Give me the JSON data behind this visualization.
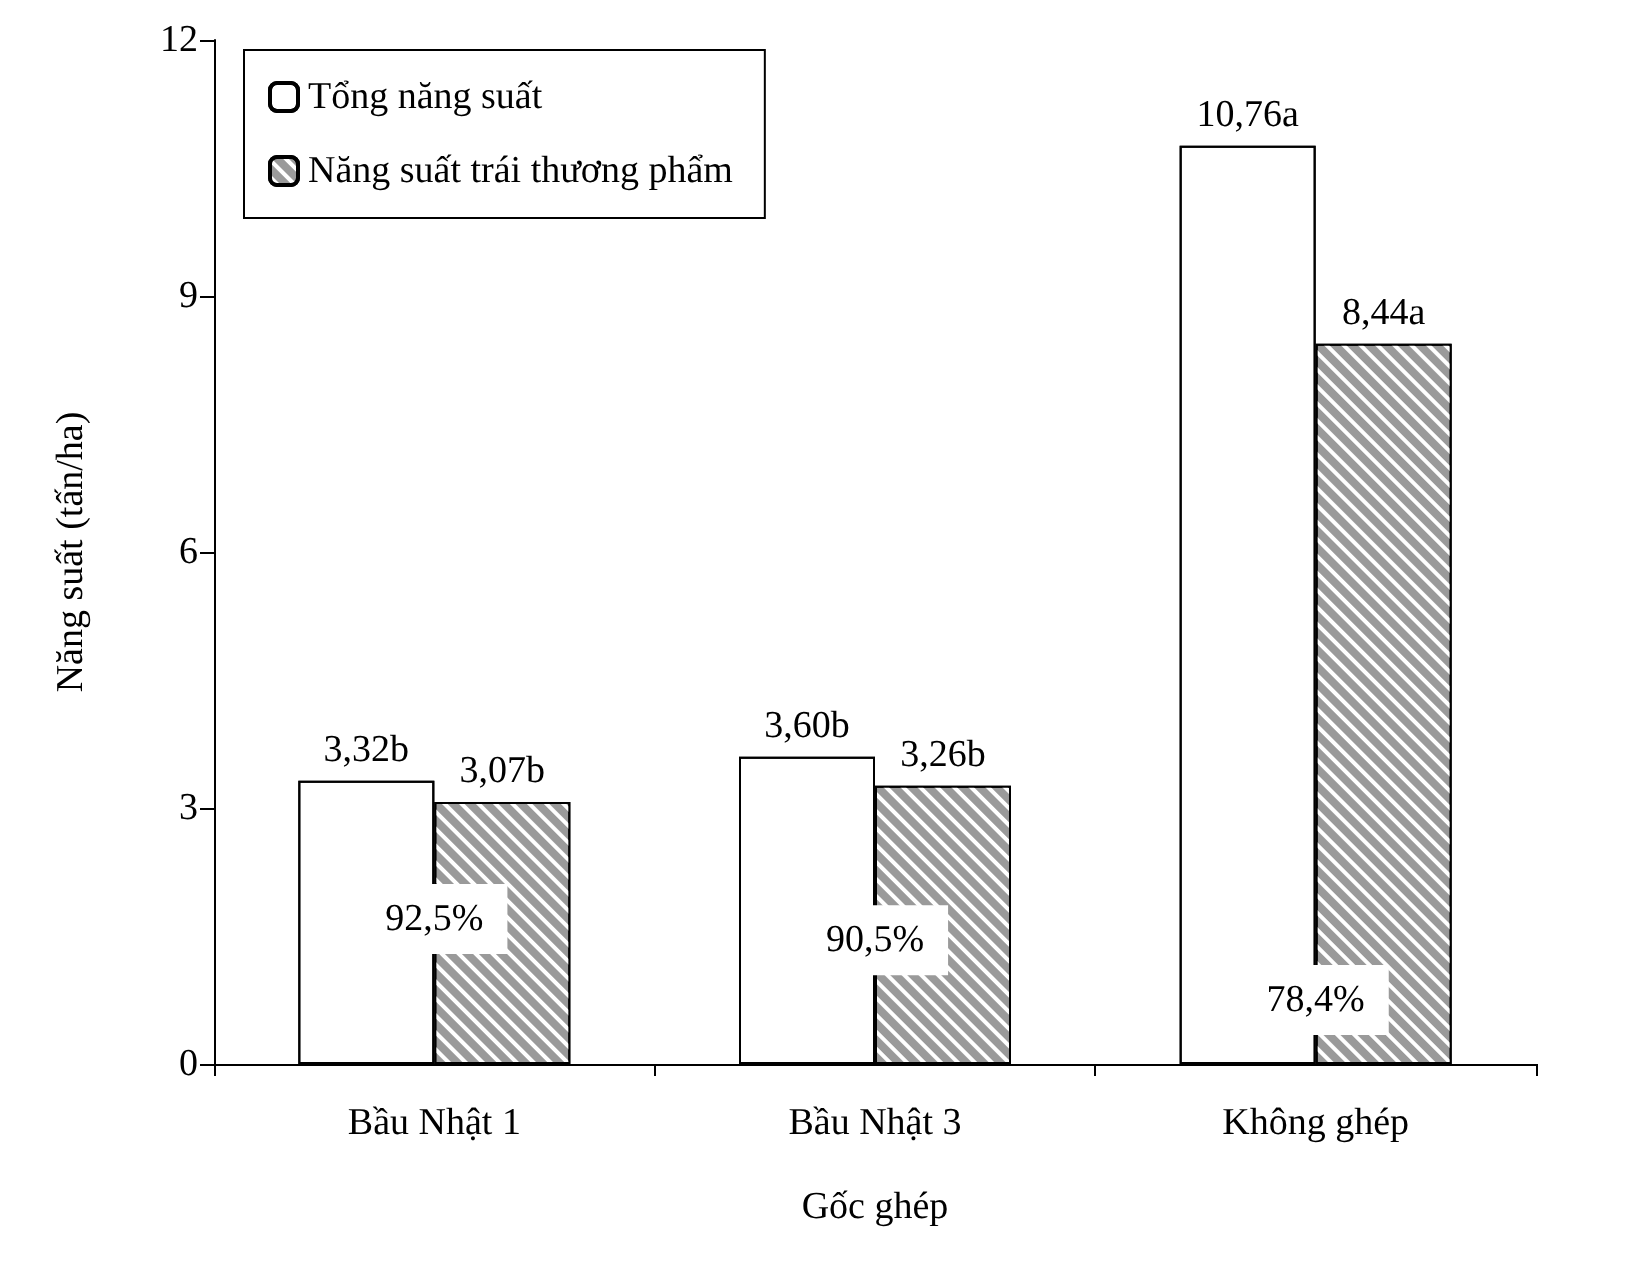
{
  "chart_data": {
    "type": "bar",
    "xlabel": "Gốc ghép",
    "ylabel": "Năng suất (tấn/ha)",
    "categories": [
      "Bầu Nhật 1",
      "Bầu Nhật 3",
      "Không ghép"
    ],
    "series": [
      {
        "name": "Tổng năng suất",
        "color": "#ffffff",
        "values": [
          3.32,
          3.6,
          10.76
        ],
        "value_labels": [
          "3,32b",
          "3,60b",
          "10,76a"
        ]
      },
      {
        "name": "Năng suất trái thương phẩm",
        "color": "#9a9a9a",
        "values": [
          3.07,
          3.26,
          8.44
        ],
        "value_labels": [
          "3,07b",
          "3,26b",
          "8,44a"
        ]
      }
    ],
    "ylim": [
      0,
      12
    ],
    "yticks": [
      0,
      3,
      6,
      9,
      12
    ],
    "grid": false,
    "legend": "top left",
    "annotations": [
      {
        "text": "92,5%",
        "x": "Bầu Nhật 1",
        "y": 1.7
      },
      {
        "text": "90,5%",
        "x": "Bầu Nhật 3",
        "y": 1.45
      },
      {
        "text": "78,4%",
        "x": "Không ghép",
        "y": 0.75
      }
    ]
  }
}
